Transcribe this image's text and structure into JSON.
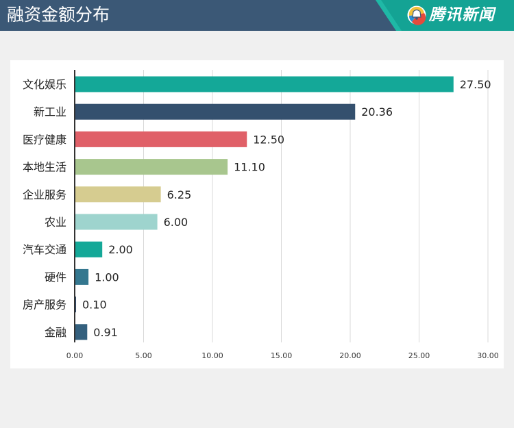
{
  "header": {
    "title": "融资金额分布",
    "brand": "腾讯新闻"
  },
  "colors": {
    "header_bg": "#3b5876",
    "brand_bg": "#14a394"
  },
  "icons": {
    "brand_logo": "tencent-news-logo-icon"
  },
  "chart_data": {
    "type": "bar",
    "orientation": "horizontal",
    "categories": [
      "文化娱乐",
      "新工业",
      "医疗健康",
      "本地生活",
      "企业服务",
      "农业",
      "汽车交通",
      "硬件",
      "房产服务",
      "金融"
    ],
    "values": [
      27.5,
      20.36,
      12.5,
      11.1,
      6.25,
      6.0,
      2.0,
      1.0,
      0.1,
      0.91
    ],
    "value_labels": [
      "27.50",
      "20.36",
      "12.50",
      "11.10",
      "6.25",
      "6.00",
      "2.00",
      "1.00",
      "0.10",
      "0.91"
    ],
    "colors": [
      "#14a898",
      "#34506e",
      "#e06068",
      "#a8c68e",
      "#d6cc90",
      "#9ed4ce",
      "#14a898",
      "#34778f",
      "#2e4a6a",
      "#34607e"
    ],
    "xlim": [
      0,
      30
    ],
    "xticks": [
      0,
      5,
      10,
      15,
      20,
      25,
      30
    ],
    "xtick_labels": [
      "0.00",
      "5.00",
      "10.00",
      "15.00",
      "20.00",
      "25.00",
      "30.00"
    ],
    "grid": "vertical",
    "legend": "none",
    "title": "",
    "xlabel": "",
    "ylabel": ""
  }
}
